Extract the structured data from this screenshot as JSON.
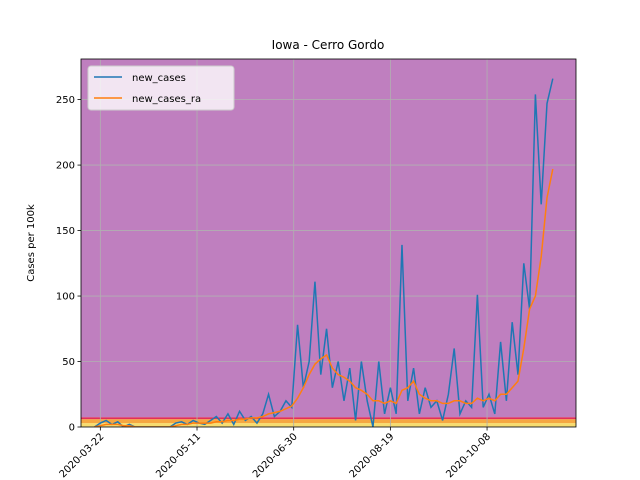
{
  "chart_data": {
    "type": "line",
    "title": "Iowa - Cerro Gordo",
    "y_label": "Cases per 100k",
    "x": [
      "2020-03-19",
      "2020-03-22",
      "2020-03-25",
      "2020-03-28",
      "2020-03-31",
      "2020-04-03",
      "2020-04-06",
      "2020-04-09",
      "2020-04-12",
      "2020-04-15",
      "2020-04-18",
      "2020-04-21",
      "2020-04-24",
      "2020-04-27",
      "2020-04-30",
      "2020-05-03",
      "2020-05-06",
      "2020-05-09",
      "2020-05-12",
      "2020-05-15",
      "2020-05-18",
      "2020-05-21",
      "2020-05-24",
      "2020-05-27",
      "2020-05-30",
      "2020-06-02",
      "2020-06-05",
      "2020-06-08",
      "2020-06-11",
      "2020-06-14",
      "2020-06-17",
      "2020-06-20",
      "2020-06-23",
      "2020-06-26",
      "2020-06-29",
      "2020-07-02",
      "2020-07-05",
      "2020-07-08",
      "2020-07-11",
      "2020-07-14",
      "2020-07-17",
      "2020-07-20",
      "2020-07-23",
      "2020-07-26",
      "2020-07-29",
      "2020-08-01",
      "2020-08-04",
      "2020-08-07",
      "2020-08-10",
      "2020-08-13",
      "2020-08-16",
      "2020-08-19",
      "2020-08-22",
      "2020-08-25",
      "2020-08-28",
      "2020-08-31",
      "2020-09-03",
      "2020-09-06",
      "2020-09-09",
      "2020-09-12",
      "2020-09-15",
      "2020-09-18",
      "2020-09-21",
      "2020-09-24",
      "2020-09-27",
      "2020-09-30",
      "2020-10-03",
      "2020-10-06",
      "2020-10-09",
      "2020-10-12",
      "2020-10-15",
      "2020-10-18",
      "2020-10-21",
      "2020-10-24",
      "2020-10-27",
      "2020-10-30",
      "2020-11-02",
      "2020-11-05",
      "2020-11-08",
      "2020-11-11"
    ],
    "series": [
      {
        "name": "new_cases",
        "color": "#1f77b4",
        "values": [
          0,
          3,
          5,
          2,
          4,
          0,
          2,
          0,
          0,
          0,
          0,
          0,
          0,
          0,
          3,
          4,
          2,
          5,
          3,
          2,
          5,
          8,
          3,
          10,
          2,
          12,
          5,
          8,
          3,
          10,
          25,
          8,
          12,
          20,
          15,
          78,
          30,
          50,
          111,
          40,
          75,
          30,
          50,
          20,
          45,
          5,
          50,
          20,
          0,
          50,
          10,
          30,
          10,
          139,
          20,
          45,
          10,
          30,
          15,
          20,
          5,
          25,
          60,
          10,
          20,
          15,
          101,
          15,
          25,
          10,
          65,
          20,
          80,
          40,
          125,
          90,
          254,
          170,
          247,
          266
        ]
      },
      {
        "name": "new_cases_ra",
        "color": "#ff7f0e",
        "values": [
          0,
          1,
          2,
          2,
          2,
          1,
          1,
          0,
          0,
          0,
          0,
          0,
          0,
          0,
          1,
          2,
          2,
          3,
          3,
          3,
          3,
          4,
          4,
          5,
          5,
          6,
          6,
          7,
          7,
          8,
          10,
          11,
          12,
          14,
          16,
          22,
          30,
          40,
          48,
          52,
          55,
          45,
          40,
          38,
          35,
          30,
          28,
          25,
          20,
          20,
          18,
          20,
          18,
          28,
          30,
          35,
          25,
          22,
          20,
          20,
          18,
          18,
          20,
          20,
          18,
          18,
          22,
          20,
          22,
          20,
          25,
          25,
          30,
          35,
          60,
          90,
          100,
          130,
          175,
          197
        ]
      }
    ],
    "xlim": [
      "2020-03-12",
      "2020-11-23"
    ],
    "xticks": [
      "2020-03-22",
      "2020-05-11",
      "2020-06-30",
      "2020-08-19",
      "2020-10-08"
    ],
    "ylim": [
      0,
      281
    ],
    "yticks": [
      0,
      50,
      100,
      150,
      200,
      250
    ],
    "grid": true,
    "legend": "upper left",
    "bands": [
      {
        "from": 0,
        "to": 3,
        "color": "#f7dc6f"
      },
      {
        "from": 3,
        "to": 6,
        "color": "#f5a742"
      },
      {
        "from": 6,
        "to": 7.5,
        "color": "#e0305a"
      },
      {
        "from": 7.5,
        "to": 281,
        "color": "#bf7fbf"
      }
    ]
  }
}
